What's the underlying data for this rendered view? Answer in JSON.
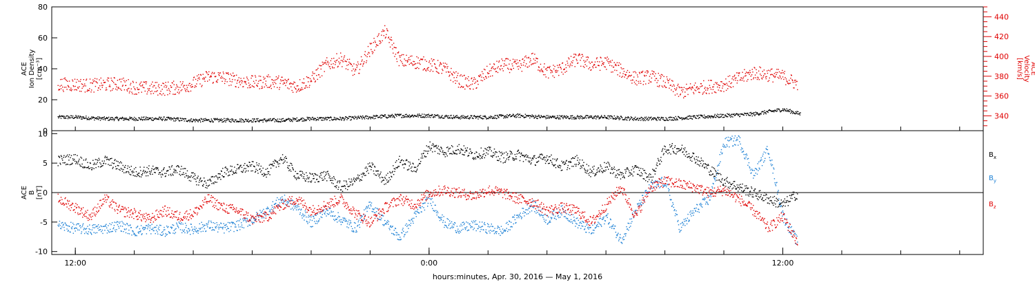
{
  "chart_data": [
    {
      "type": "scatter",
      "panel": "top",
      "left_axis": {
        "label_lines": [
          "ACE",
          "Ion Density",
          "[cm⁻³]"
        ],
        "ylim": [
          0,
          80
        ],
        "ticks": [
          0,
          20,
          40,
          60,
          80
        ]
      },
      "right_axis": {
        "label_lines": [
          "ACE",
          "Velocity",
          "[km/s]"
        ],
        "ylim": [
          325,
          450
        ],
        "ticks": [
          340,
          360,
          380,
          400,
          420,
          440
        ],
        "tick_labels": [
          "340",
          "360",
          "380",
          "400",
          "420",
          "440"
        ],
        "color": "#e00000"
      },
      "series": [
        {
          "axis": "left",
          "color": "#000000",
          "x": [
            11.4,
            12.0,
            13.0,
            14.0,
            15.0,
            16.0,
            17.0,
            18.0,
            19.0,
            20.0,
            21.0,
            22.0,
            23.0,
            24.0,
            25.0,
            26.0,
            27.0,
            28.0,
            29.0,
            30.0,
            31.0,
            32.0,
            33.0,
            34.0,
            35.0,
            36.0,
            36.6
          ],
          "y": [
            9,
            9,
            8,
            8,
            8,
            7,
            7,
            7,
            7,
            8,
            8,
            9,
            10,
            10,
            9,
            9,
            10,
            9,
            9,
            9,
            8,
            8,
            9,
            10,
            11,
            14,
            11
          ]
        },
        {
          "axis": "right",
          "color": "#e00000",
          "x": [
            11.4,
            12.0,
            12.5,
            13.0,
            13.5,
            14.0,
            14.5,
            15.0,
            15.5,
            16.0,
            16.5,
            17.0,
            17.5,
            18.0,
            18.5,
            19.0,
            19.5,
            20.0,
            20.5,
            21.0,
            21.5,
            22.0,
            22.5,
            23.0,
            23.5,
            24.0,
            24.5,
            25.0,
            25.5,
            26.0,
            26.5,
            27.0,
            27.5,
            28.0,
            28.5,
            29.0,
            29.5,
            30.0,
            30.5,
            31.0,
            31.5,
            32.0,
            32.5,
            33.0,
            33.5,
            34.0,
            34.5,
            35.0,
            35.5,
            36.0,
            36.5
          ],
          "y": [
            372,
            372,
            371,
            372,
            373,
            369,
            368,
            368,
            369,
            373,
            380,
            379,
            376,
            374,
            375,
            374,
            370,
            377,
            392,
            398,
            385,
            408,
            425,
            396,
            395,
            392,
            388,
            376,
            372,
            385,
            392,
            390,
            398,
            384,
            388,
            398,
            392,
            394,
            386,
            378,
            380,
            374,
            364,
            368,
            370,
            372,
            378,
            384,
            382,
            380,
            372
          ]
        }
      ]
    },
    {
      "type": "scatter",
      "panel": "bottom",
      "left_axis": {
        "label_lines": [
          "ACE",
          "B",
          "[nT]"
        ],
        "ylim": [
          -10.5,
          10.5
        ],
        "ticks": [
          -10,
          -5,
          0,
          5,
          10
        ]
      },
      "zero_line": true,
      "series": [
        {
          "name": "Bx",
          "color": "#000000",
          "x": [
            11.4,
            12.0,
            12.5,
            13.0,
            13.5,
            14.0,
            14.5,
            15.0,
            15.5,
            16.0,
            16.5,
            17.0,
            17.5,
            18.0,
            18.5,
            19.0,
            19.5,
            20.0,
            20.5,
            21.0,
            21.5,
            22.0,
            22.5,
            23.0,
            23.5,
            24.0,
            24.5,
            25.0,
            25.5,
            26.0,
            26.5,
            27.0,
            27.5,
            28.0,
            28.5,
            29.0,
            29.5,
            30.0,
            30.5,
            31.0,
            31.5,
            32.0,
            32.5,
            33.0,
            33.5,
            34.0,
            34.5,
            35.0,
            35.5,
            36.0,
            36.5
          ],
          "y": [
            5.5,
            5.8,
            4.5,
            5.5,
            4.5,
            3.5,
            3.8,
            3.5,
            4.0,
            2.5,
            1.5,
            3.5,
            4.0,
            4.5,
            3.5,
            6.0,
            3.0,
            2.5,
            3.0,
            1.0,
            2.0,
            4.5,
            2.0,
            5.5,
            4.0,
            8.0,
            7.0,
            7.5,
            6.5,
            7.0,
            6.0,
            6.5,
            5.5,
            6.0,
            4.5,
            5.5,
            3.5,
            4.5,
            3.0,
            4.0,
            2.5,
            7.5,
            7.5,
            6.0,
            4.0,
            2.0,
            1.0,
            0.0,
            -1.0,
            -2.0,
            0.0
          ]
        },
        {
          "name": "By",
          "color": "#1a7fd4",
          "x": [
            11.4,
            12.0,
            12.5,
            13.0,
            13.5,
            14.0,
            14.5,
            15.0,
            15.5,
            16.0,
            16.5,
            17.0,
            17.5,
            18.0,
            18.5,
            19.0,
            19.5,
            20.0,
            20.5,
            21.0,
            21.5,
            22.0,
            22.5,
            23.0,
            23.5,
            24.0,
            24.5,
            25.0,
            25.5,
            26.0,
            26.5,
            27.0,
            27.5,
            28.0,
            28.5,
            29.0,
            29.5,
            30.0,
            30.5,
            31.0,
            31.5,
            32.0,
            32.5,
            33.0,
            33.5,
            34.0,
            34.5,
            35.0,
            35.5,
            36.0,
            36.5
          ],
          "y": [
            -5.5,
            -6.0,
            -6.2,
            -6.0,
            -5.5,
            -6.5,
            -6.0,
            -6.5,
            -5.8,
            -6.2,
            -5.5,
            -6.0,
            -5.5,
            -4.5,
            -3.0,
            -1.0,
            -2.5,
            -5.0,
            -3.0,
            -4.5,
            -6.0,
            -2.0,
            -5.0,
            -7.5,
            -4.0,
            -1.0,
            -5.0,
            -6.0,
            -5.5,
            -6.0,
            -6.5,
            -4.0,
            -2.0,
            -4.5,
            -3.0,
            -5.0,
            -6.5,
            -4.0,
            -8.0,
            -3.0,
            1.0,
            2.0,
            -6.0,
            -3.0,
            -1.0,
            8.5,
            9.0,
            3.0,
            7.5,
            -4.0,
            -8.5
          ]
        },
        {
          "name": "Bz",
          "color": "#e00000",
          "x": [
            11.4,
            12.0,
            12.5,
            13.0,
            13.5,
            14.0,
            14.5,
            15.0,
            15.5,
            16.0,
            16.5,
            17.0,
            17.5,
            18.0,
            18.5,
            19.0,
            19.5,
            20.0,
            20.5,
            21.0,
            21.5,
            22.0,
            22.5,
            23.0,
            23.5,
            24.0,
            24.5,
            25.0,
            25.5,
            26.0,
            26.5,
            27.0,
            27.5,
            28.0,
            28.5,
            29.0,
            29.5,
            30.0,
            30.5,
            31.0,
            31.5,
            32.0,
            32.5,
            33.0,
            33.5,
            34.0,
            34.5,
            35.0,
            35.5,
            36.0,
            36.5
          ],
          "y": [
            -1.0,
            -2.5,
            -4.0,
            -1.0,
            -3.0,
            -3.5,
            -4.5,
            -3.0,
            -4.0,
            -3.5,
            -1.0,
            -2.5,
            -3.0,
            -4.5,
            -4.0,
            -2.0,
            -1.0,
            -3.0,
            -2.0,
            -1.0,
            -3.5,
            -5.0,
            -2.5,
            -1.0,
            -2.0,
            0.0,
            0.5,
            0.0,
            -0.5,
            0.5,
            0.0,
            -1.0,
            -1.5,
            -3.0,
            -2.5,
            -3.0,
            -5.0,
            -2.0,
            1.0,
            -4.0,
            1.0,
            2.0,
            1.5,
            1.0,
            0.0,
            0.5,
            -1.0,
            -3.0,
            -6.0,
            -4.0,
            -8.5
          ]
        }
      ]
    }
  ],
  "x_axis": {
    "title": "hours:minutes, Apr. 30, 2016 — May  1, 2016",
    "range_hours": [
      11.2,
      42.8
    ],
    "tick_labels": [
      {
        "hour": 12,
        "label": "12:00"
      },
      {
        "hour": 24,
        "label": "0:00"
      },
      {
        "hour": 36,
        "label": "12:00"
      }
    ],
    "minor_ticks_hours": [
      12,
      14,
      16,
      18,
      20,
      22,
      24,
      26,
      28,
      30,
      32,
      34,
      36,
      38,
      40,
      42
    ]
  },
  "legend": {
    "items": [
      {
        "name": "Bx",
        "base": "B",
        "sub": "x",
        "color": "#000000"
      },
      {
        "name": "By",
        "base": "B",
        "sub": "y",
        "color": "#1a7fd4"
      },
      {
        "name": "Bz",
        "base": "B",
        "sub": "z",
        "color": "#e00000"
      }
    ]
  }
}
